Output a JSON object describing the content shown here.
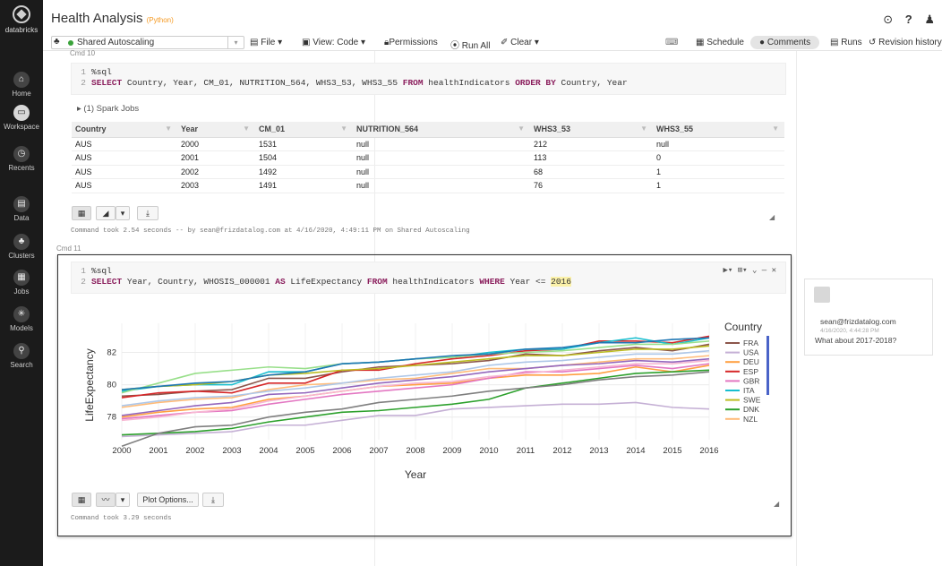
{
  "sidebar": {
    "logo_label": "databricks",
    "items": [
      {
        "label": "Home",
        "icon": "home-icon",
        "glyph": "⌂"
      },
      {
        "label": "Workspace",
        "icon": "folder-icon",
        "glyph": "▭"
      },
      {
        "label": "Recents",
        "icon": "clock-icon",
        "glyph": "◷"
      },
      {
        "label": "Data",
        "icon": "database-icon",
        "glyph": "▤"
      },
      {
        "label": "Clusters",
        "icon": "cluster-icon",
        "glyph": "♣"
      },
      {
        "label": "Jobs",
        "icon": "calendar-icon",
        "glyph": "▦"
      },
      {
        "label": "Models",
        "icon": "models-icon",
        "glyph": "✳"
      },
      {
        "label": "Search",
        "icon": "search-icon",
        "glyph": "⚲"
      }
    ]
  },
  "header": {
    "title": "Health Analysis",
    "language": "(Python)",
    "icons": {
      "clock": "⊙",
      "help": "?",
      "user": "♟"
    }
  },
  "toolbar": {
    "cluster": "Shared Autoscaling",
    "file": "File ▾",
    "view": "View: Code ▾",
    "permissions": "Permissions",
    "run_all": "Run All",
    "clear": "Clear ▾",
    "keyboard": "⌨",
    "schedule": "Schedule",
    "comments": "Comments",
    "runs": "Runs",
    "revision_history": "Revision history"
  },
  "cell10": {
    "label": "Cmd 10",
    "code_line1": "%sql",
    "code_kw1": "SELECT",
    "code_rest1": " Country, Year, CM_01, NUTRITION_564, WHS3_53, WHS3_55 ",
    "code_kw2": "FROM",
    "code_rest2": " healthIndicators ",
    "code_kw3": "ORDER BY",
    "code_rest3": " Country, Year",
    "spark_jobs": "▸ (1) Spark Jobs",
    "columns": [
      "Country",
      "Year",
      "CM_01",
      "NUTRITION_564",
      "WHS3_53",
      "WHS3_55"
    ],
    "rows": [
      [
        "AUS",
        "2000",
        "1531",
        "null",
        "212",
        "null"
      ],
      [
        "AUS",
        "2001",
        "1504",
        "null",
        "113",
        "0"
      ],
      [
        "AUS",
        "2002",
        "1492",
        "null",
        "68",
        "1"
      ],
      [
        "AUS",
        "2003",
        "1491",
        "null",
        "76",
        "1"
      ]
    ],
    "took": "Command took 2.54 seconds -- by sean@frizdatalog.com at 4/16/2020, 4:49:11 PM on Shared Autoscaling"
  },
  "cell11": {
    "label": "Cmd 11",
    "code_line1": "%sql",
    "code_kw1": "SELECT",
    "code_rest1": " Year, Country, WHOSIS_000001 ",
    "code_kw2": "AS",
    "code_rest2": " LifeExpectancy ",
    "code_kw3": "FROM",
    "code_rest3": " healthIndicators ",
    "code_kw4": "WHERE",
    "code_rest4": " Year <= ",
    "code_hl": "2016",
    "controls": "▶▾ ⊞▾ ⌄ — ✕",
    "plot_options": "Plot Options...",
    "took": "Command took 3.29 seconds"
  },
  "comment": {
    "author": "sean@frizdatalog.com",
    "date": "4/16/2020, 4:44:28 PM",
    "message": "What about 2017-2018?"
  },
  "chart_data": {
    "type": "line",
    "title": "",
    "xlabel": "Year",
    "ylabel": "LifeExpectancy",
    "x": [
      2000,
      2001,
      2002,
      2003,
      2004,
      2005,
      2006,
      2007,
      2008,
      2009,
      2010,
      2011,
      2012,
      2013,
      2014,
      2015,
      2016
    ],
    "ylim": [
      76.6,
      83.8
    ],
    "yticks": [
      78,
      80,
      82
    ],
    "legend_title": "Country",
    "legend_position": "right",
    "series": [
      {
        "name": "FRA",
        "color": "#8c564b",
        "values": [
          79.3,
          79.4,
          79.6,
          79.7,
          80.4,
          80.4,
          80.8,
          81.1,
          81.2,
          81.3,
          81.5,
          81.9,
          81.8,
          82.1,
          82.3,
          82.1,
          82.5
        ]
      },
      {
        "name": "USA",
        "color": "#c5b0d5",
        "values": [
          76.8,
          76.9,
          77.0,
          77.1,
          77.5,
          77.5,
          77.8,
          78.1,
          78.1,
          78.5,
          78.6,
          78.7,
          78.8,
          78.8,
          78.9,
          78.6,
          78.5
        ]
      },
      {
        "name": "DEU",
        "color": "#ff9f40",
        "values": [
          78.0,
          78.3,
          78.5,
          78.6,
          79.1,
          79.3,
          79.6,
          79.9,
          80.0,
          80.1,
          80.4,
          80.6,
          80.6,
          80.7,
          81.1,
          80.8,
          81.2
        ]
      },
      {
        "name": "ESP",
        "color": "#d62728",
        "values": [
          79.2,
          79.5,
          79.6,
          79.5,
          80.1,
          80.1,
          80.9,
          80.9,
          81.3,
          81.6,
          81.8,
          82.1,
          82.2,
          82.7,
          82.7,
          82.6,
          83.0
        ]
      },
      {
        "name": "GBR",
        "color": "#e377c2",
        "values": [
          77.9,
          78.1,
          78.3,
          78.4,
          78.8,
          79.1,
          79.4,
          79.6,
          79.8,
          80.0,
          80.4,
          80.8,
          80.8,
          81.0,
          81.2,
          81.0,
          81.3
        ]
      },
      {
        "name": "ITA",
        "color": "#17becf",
        "values": [
          79.6,
          79.9,
          80.0,
          80.0,
          80.8,
          80.8,
          81.3,
          81.4,
          81.6,
          81.7,
          82.0,
          82.2,
          82.2,
          82.6,
          82.9,
          82.5,
          82.9
        ]
      },
      {
        "name": "SWE",
        "color": "#bcbd22",
        "values": [
          79.7,
          79.9,
          80.0,
          80.2,
          80.6,
          80.7,
          80.9,
          81.0,
          81.2,
          81.4,
          81.6,
          81.8,
          81.8,
          82.0,
          82.2,
          82.2,
          82.4
        ]
      },
      {
        "name": "DNK",
        "color": "#2ca02c",
        "values": [
          76.9,
          77.0,
          77.1,
          77.3,
          77.7,
          78.0,
          78.3,
          78.4,
          78.6,
          78.8,
          79.1,
          79.8,
          80.1,
          80.4,
          80.7,
          80.8,
          80.9
        ]
      },
      {
        "name": "NZL",
        "color": "#ffbb78",
        "values": [
          78.6,
          78.9,
          79.1,
          79.2,
          79.7,
          80.0,
          80.1,
          80.3,
          80.4,
          80.7,
          81.0,
          81.0,
          81.2,
          81.4,
          81.6,
          81.6,
          81.8
        ]
      },
      {
        "name": "",
        "color": "#98df8a",
        "values": [
          79.5,
          80.1,
          80.7,
          80.9,
          81.1,
          81.0,
          81.3,
          81.4,
          81.6,
          81.7,
          81.9,
          82.0,
          82.1,
          82.3,
          82.5,
          82.5,
          82.7
        ]
      },
      {
        "name": "",
        "color": "#7f7f7f",
        "values": [
          76.2,
          77.0,
          77.4,
          77.5,
          78.0,
          78.3,
          78.5,
          78.9,
          79.1,
          79.3,
          79.6,
          79.8,
          80.0,
          80.3,
          80.5,
          80.6,
          80.8
        ]
      },
      {
        "name": "",
        "color": "#aec7e8",
        "values": [
          78.7,
          79.0,
          79.2,
          79.3,
          79.6,
          79.8,
          80.1,
          80.4,
          80.6,
          80.8,
          81.2,
          81.4,
          81.5,
          81.7,
          81.9,
          81.9,
          82.1
        ]
      },
      {
        "name": "",
        "color": "#9467bd",
        "values": [
          78.1,
          78.4,
          78.7,
          78.9,
          79.4,
          79.5,
          79.8,
          80.1,
          80.3,
          80.5,
          80.8,
          81.0,
          81.2,
          81.3,
          81.5,
          81.4,
          81.6
        ]
      },
      {
        "name": "",
        "color": "#1f77b4",
        "values": [
          79.7,
          79.9,
          80.1,
          80.2,
          80.6,
          80.8,
          81.3,
          81.4,
          81.6,
          81.8,
          81.9,
          82.2,
          82.3,
          82.6,
          82.6,
          82.8,
          82.9
        ]
      },
      {
        "name": "",
        "color": "#f7b6d2",
        "values": [
          77.8,
          78.0,
          78.3,
          78.5,
          79.0,
          79.3,
          79.6,
          79.9,
          80.1,
          80.2,
          80.5,
          80.7,
          80.9,
          81.1,
          81.3,
          81.3,
          81.5
        ]
      }
    ]
  }
}
